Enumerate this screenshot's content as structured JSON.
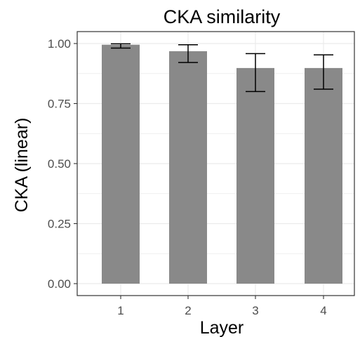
{
  "chart_data": {
    "type": "bar",
    "title": "CKA similarity",
    "xlabel": "Layer",
    "ylabel": "CKA (linear)",
    "categories": [
      "1",
      "2",
      "3",
      "4"
    ],
    "values": [
      0.995,
      0.968,
      0.898,
      0.898
    ],
    "error_lower": [
      0.981,
      0.921,
      0.8,
      0.81
    ],
    "error_upper": [
      0.999,
      0.995,
      0.958,
      0.953
    ],
    "ylim": [
      0,
      1
    ],
    "yticks": [
      0.0,
      0.25,
      0.5,
      0.75,
      1.0
    ],
    "ytick_labels": [
      "0.00",
      "0.25",
      "0.50",
      "0.75",
      "1.00"
    ],
    "grid": true,
    "colors": {
      "bar": "#898989",
      "error_bar": "#000000",
      "grid": "#ebebeb",
      "axis": "#333333",
      "tick_text": "#4d4d4d"
    }
  }
}
